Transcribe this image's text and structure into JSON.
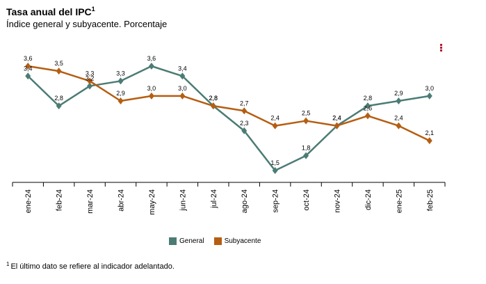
{
  "title": "Tasa anual del IPC",
  "title_superscript": "1",
  "subtitle": "Índice general y subyacente. Porcentaje",
  "footnote": {
    "marker": "1",
    "text": "El último dato se refiere al indicador adelantado."
  },
  "menu_icon": "vertical-dots-icon",
  "chart_data": {
    "type": "line",
    "categories": [
      "ene-24",
      "feb-24",
      "mar-24",
      "abr-24",
      "may-24",
      "jun-24",
      "jul-24",
      "ago-24",
      "sep-24",
      "oct-24",
      "nov-24",
      "dic-24",
      "ene-25",
      "feb-25"
    ],
    "series": [
      {
        "name": "General",
        "color": "#4b7c74",
        "marker": "diamond",
        "values": [
          3.4,
          2.8,
          3.2,
          3.3,
          3.6,
          3.4,
          2.8,
          2.3,
          1.5,
          1.8,
          2.4,
          2.8,
          2.9,
          3.0
        ],
        "labels": [
          "3,4",
          "2,8",
          "3,2",
          "3,3",
          "3,6",
          "3,4",
          "2,8",
          "2,3",
          "1,5",
          "1,8",
          "2,4",
          "2,8",
          "2,9",
          "3,0"
        ]
      },
      {
        "name": "Subyacente",
        "color": "#b55e12",
        "marker": "diamond",
        "values": [
          3.6,
          3.5,
          3.3,
          2.9,
          3.0,
          3.0,
          2.8,
          2.7,
          2.4,
          2.5,
          2.4,
          2.6,
          2.4,
          2.1
        ],
        "labels": [
          "3,6",
          "3,5",
          "3,3",
          "2,9",
          "3,0",
          "3,0",
          "2,8",
          "2,7",
          "2,4",
          "2,5",
          "2,4",
          "2,6",
          "2,4",
          "2,1"
        ]
      }
    ],
    "y_range": [
      1.0,
      4.0
    ],
    "grid": false,
    "legend_position": "bottom"
  }
}
